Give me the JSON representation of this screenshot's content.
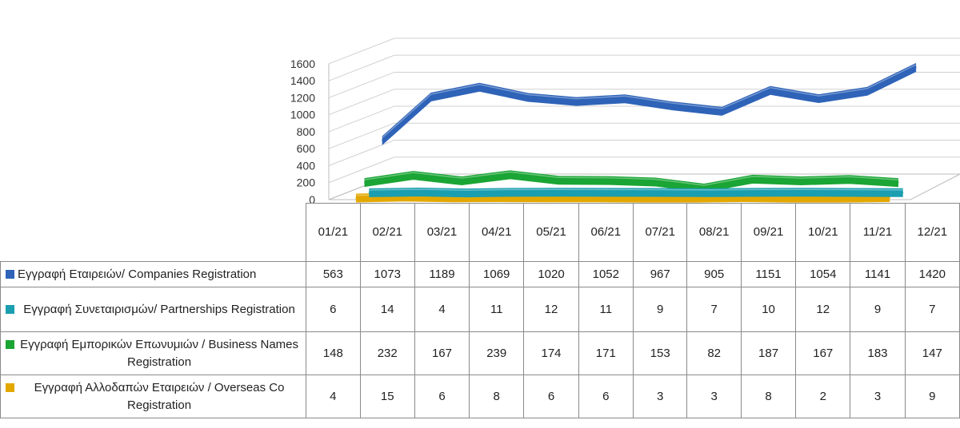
{
  "chart_data": {
    "type": "line",
    "three_d": true,
    "categories": [
      "01/21",
      "02/21",
      "03/21",
      "04/21",
      "05/21",
      "06/21",
      "07/21",
      "08/21",
      "09/21",
      "10/21",
      "11/21",
      "12/21"
    ],
    "y_ticks": [
      "1600",
      "1400",
      "1200",
      "1000",
      "800",
      "600",
      "400",
      "200",
      "0"
    ],
    "ylim": [
      0,
      1600
    ],
    "grid": true,
    "legend": "table-left",
    "series": [
      {
        "name": "Εγγραφή Εταιρειών/ Companies Registration",
        "color": "#2e63b8",
        "values": [
          563,
          1073,
          1189,
          1069,
          1020,
          1052,
          967,
          905,
          1151,
          1054,
          1141,
          1420
        ]
      },
      {
        "name": "Εγγραφή Συνεταιρισμών/ Partnerships Registration",
        "color": "#1a9eb0",
        "values": [
          6,
          14,
          4,
          11,
          12,
          11,
          9,
          7,
          10,
          12,
          9,
          7
        ]
      },
      {
        "name": "Εγγραφή Εμπορικών Επωνυμιών / Business Names Registration",
        "color": "#1aa534",
        "values": [
          148,
          232,
          167,
          239,
          174,
          171,
          153,
          82,
          187,
          167,
          183,
          147
        ]
      },
      {
        "name": "Εγγραφή Αλλοδαπών Εταιρειών / Overseas Co Registration",
        "color": "#e3a800",
        "values": [
          4,
          15,
          6,
          8,
          6,
          6,
          3,
          3,
          8,
          2,
          3,
          9
        ]
      }
    ]
  }
}
